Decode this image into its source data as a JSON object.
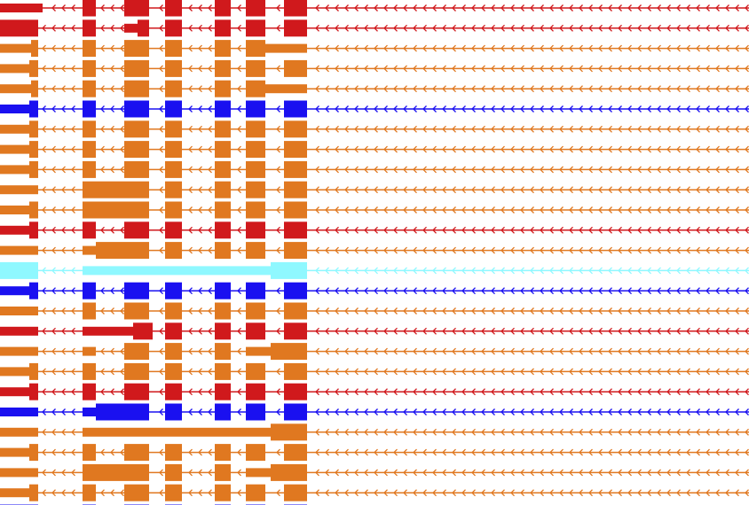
{
  "colors": {
    "red": "#d0191c",
    "orange": "#e07820",
    "blue": "#1a10f0",
    "cyan": "#8ff8ff",
    "background": "#ffffff"
  },
  "strand": "minus",
  "transcripts": [
    {
      "color": "red",
      "exons": [
        [
          0,
          48,
          "u"
        ],
        [
          93,
          108,
          "c"
        ],
        [
          140,
          168,
          "c"
        ],
        [
          186,
          205,
          "c"
        ],
        [
          242,
          260,
          "c"
        ],
        [
          277,
          299,
          "c"
        ],
        [
          320,
          346,
          "c"
        ]
      ]
    },
    {
      "color": "red",
      "exons": [
        [
          0,
          43,
          "c"
        ],
        [
          93,
          108,
          "c"
        ],
        [
          140,
          155,
          "u"
        ],
        [
          155,
          168,
          "c"
        ],
        [
          186,
          205,
          "c"
        ],
        [
          242,
          260,
          "c"
        ],
        [
          277,
          299,
          "c"
        ],
        [
          320,
          346,
          "c"
        ]
      ]
    },
    {
      "color": "orange",
      "exons": [
        [
          0,
          35,
          "u"
        ],
        [
          35,
          43,
          "c"
        ],
        [
          93,
          108,
          "c"
        ],
        [
          140,
          168,
          "c"
        ],
        [
          186,
          205,
          "c"
        ],
        [
          242,
          260,
          "c"
        ],
        [
          277,
          299,
          "c"
        ],
        [
          299,
          346,
          "u"
        ]
      ]
    },
    {
      "color": "orange",
      "exons": [
        [
          0,
          33,
          "u"
        ],
        [
          33,
          43,
          "c"
        ],
        [
          93,
          108,
          "c"
        ],
        [
          140,
          168,
          "c"
        ],
        [
          186,
          205,
          "c"
        ],
        [
          242,
          260,
          "c"
        ],
        [
          277,
          299,
          "c"
        ],
        [
          320,
          346,
          "c"
        ]
      ]
    },
    {
      "color": "orange",
      "exons": [
        [
          0,
          35,
          "u"
        ],
        [
          35,
          43,
          "c"
        ],
        [
          93,
          108,
          "c"
        ],
        [
          140,
          168,
          "c"
        ],
        [
          186,
          205,
          "c"
        ],
        [
          242,
          260,
          "c"
        ],
        [
          277,
          299,
          "c"
        ],
        [
          299,
          346,
          "u"
        ]
      ]
    },
    {
      "color": "blue",
      "exons": [
        [
          0,
          33,
          "u"
        ],
        [
          33,
          43,
          "c"
        ],
        [
          93,
          108,
          "c"
        ],
        [
          140,
          168,
          "c"
        ],
        [
          186,
          205,
          "c"
        ],
        [
          242,
          260,
          "c"
        ],
        [
          277,
          299,
          "c"
        ],
        [
          320,
          346,
          "c"
        ]
      ]
    },
    {
      "color": "orange",
      "exons": [
        [
          0,
          33,
          "u"
        ],
        [
          33,
          43,
          "c"
        ],
        [
          93,
          108,
          "c"
        ],
        [
          140,
          168,
          "c"
        ],
        [
          186,
          205,
          "c"
        ],
        [
          242,
          260,
          "c"
        ],
        [
          277,
          299,
          "c"
        ],
        [
          320,
          346,
          "c"
        ]
      ]
    },
    {
      "color": "orange",
      "exons": [
        [
          0,
          33,
          "u"
        ],
        [
          33,
          43,
          "c"
        ],
        [
          93,
          108,
          "c"
        ],
        [
          140,
          168,
          "c"
        ],
        [
          186,
          205,
          "c"
        ],
        [
          242,
          260,
          "c"
        ],
        [
          277,
          299,
          "c"
        ],
        [
          320,
          346,
          "c"
        ]
      ]
    },
    {
      "color": "orange",
      "exons": [
        [
          0,
          33,
          "u"
        ],
        [
          33,
          43,
          "c"
        ],
        [
          93,
          108,
          "c"
        ],
        [
          140,
          168,
          "c"
        ],
        [
          186,
          205,
          "c"
        ],
        [
          242,
          260,
          "c"
        ],
        [
          277,
          299,
          "c"
        ],
        [
          320,
          346,
          "c"
        ]
      ]
    },
    {
      "color": "orange",
      "exons": [
        [
          0,
          43,
          "u"
        ],
        [
          93,
          168,
          "c"
        ],
        [
          186,
          205,
          "c"
        ],
        [
          242,
          260,
          "c"
        ],
        [
          277,
          299,
          "c"
        ],
        [
          320,
          346,
          "c"
        ]
      ]
    },
    {
      "color": "orange",
      "exons": [
        [
          0,
          33,
          "u"
        ],
        [
          33,
          43,
          "c"
        ],
        [
          93,
          108,
          "c"
        ],
        [
          108,
          168,
          "c"
        ],
        [
          186,
          205,
          "c"
        ],
        [
          242,
          260,
          "c"
        ],
        [
          277,
          299,
          "c"
        ],
        [
          320,
          346,
          "c"
        ]
      ]
    },
    {
      "color": "red",
      "exons": [
        [
          0,
          33,
          "u"
        ],
        [
          33,
          43,
          "c"
        ],
        [
          93,
          108,
          "c"
        ],
        [
          140,
          168,
          "c"
        ],
        [
          186,
          205,
          "c"
        ],
        [
          242,
          260,
          "c"
        ],
        [
          277,
          299,
          "c"
        ],
        [
          320,
          346,
          "c"
        ]
      ]
    },
    {
      "color": "orange",
      "exons": [
        [
          0,
          43,
          "u"
        ],
        [
          93,
          108,
          "u"
        ],
        [
          108,
          168,
          "c"
        ],
        [
          186,
          205,
          "c"
        ],
        [
          242,
          260,
          "c"
        ],
        [
          277,
          299,
          "c"
        ],
        [
          320,
          346,
          "c"
        ]
      ]
    },
    {
      "color": "cyan",
      "exons": [
        [
          0,
          43,
          "c"
        ],
        [
          93,
          305,
          "u"
        ],
        [
          305,
          346,
          "c"
        ]
      ]
    },
    {
      "color": "blue",
      "exons": [
        [
          0,
          33,
          "u"
        ],
        [
          33,
          43,
          "c"
        ],
        [
          93,
          108,
          "c"
        ],
        [
          140,
          168,
          "c"
        ],
        [
          186,
          205,
          "c"
        ],
        [
          242,
          260,
          "c"
        ],
        [
          277,
          299,
          "c"
        ],
        [
          320,
          346,
          "c"
        ]
      ]
    },
    {
      "color": "orange",
      "exons": [
        [
          0,
          43,
          "u"
        ],
        [
          93,
          108,
          "c"
        ],
        [
          140,
          168,
          "c"
        ],
        [
          186,
          205,
          "c"
        ],
        [
          242,
          260,
          "c"
        ],
        [
          277,
          299,
          "c"
        ],
        [
          320,
          346,
          "c"
        ]
      ]
    },
    {
      "color": "red",
      "exons": [
        [
          0,
          43,
          "u"
        ],
        [
          93,
          150,
          "u"
        ],
        [
          150,
          172,
          "c"
        ],
        [
          186,
          205,
          "c"
        ],
        [
          242,
          260,
          "c"
        ],
        [
          277,
          299,
          "c"
        ],
        [
          320,
          346,
          "c"
        ]
      ]
    },
    {
      "color": "orange",
      "exons": [
        [
          0,
          43,
          "u"
        ],
        [
          93,
          108,
          "u"
        ],
        [
          140,
          168,
          "c"
        ],
        [
          186,
          205,
          "c"
        ],
        [
          242,
          260,
          "c"
        ],
        [
          277,
          305,
          "u"
        ],
        [
          305,
          346,
          "c"
        ]
      ]
    },
    {
      "color": "orange",
      "exons": [
        [
          0,
          33,
          "u"
        ],
        [
          33,
          43,
          "c"
        ],
        [
          93,
          108,
          "c"
        ],
        [
          140,
          168,
          "c"
        ],
        [
          186,
          205,
          "c"
        ],
        [
          242,
          260,
          "c"
        ],
        [
          277,
          299,
          "c"
        ],
        [
          320,
          346,
          "c"
        ]
      ]
    },
    {
      "color": "red",
      "exons": [
        [
          0,
          33,
          "u"
        ],
        [
          33,
          43,
          "c"
        ],
        [
          93,
          108,
          "c"
        ],
        [
          140,
          168,
          "c"
        ],
        [
          186,
          205,
          "c"
        ],
        [
          242,
          260,
          "c"
        ],
        [
          277,
          299,
          "c"
        ],
        [
          320,
          346,
          "c"
        ]
      ]
    },
    {
      "color": "blue",
      "exons": [
        [
          0,
          43,
          "u"
        ],
        [
          93,
          108,
          "u"
        ],
        [
          108,
          168,
          "c"
        ],
        [
          186,
          205,
          "c"
        ],
        [
          242,
          260,
          "c"
        ],
        [
          277,
          299,
          "c"
        ],
        [
          320,
          346,
          "c"
        ]
      ]
    },
    {
      "color": "orange",
      "exons": [
        [
          0,
          43,
          "u"
        ],
        [
          93,
          305,
          "u"
        ],
        [
          305,
          346,
          "c"
        ]
      ]
    },
    {
      "color": "orange",
      "exons": [
        [
          0,
          33,
          "u"
        ],
        [
          33,
          43,
          "c"
        ],
        [
          93,
          108,
          "c"
        ],
        [
          140,
          168,
          "c"
        ],
        [
          186,
          205,
          "c"
        ],
        [
          242,
          260,
          "c"
        ],
        [
          277,
          299,
          "c"
        ],
        [
          320,
          346,
          "c"
        ]
      ]
    },
    {
      "color": "orange",
      "exons": [
        [
          0,
          43,
          "u"
        ],
        [
          93,
          108,
          "c"
        ],
        [
          108,
          168,
          "c"
        ],
        [
          186,
          205,
          "c"
        ],
        [
          242,
          260,
          "c"
        ],
        [
          277,
          305,
          "u"
        ],
        [
          305,
          346,
          "c"
        ]
      ]
    },
    {
      "color": "orange",
      "exons": [
        [
          0,
          33,
          "u"
        ],
        [
          33,
          43,
          "c"
        ],
        [
          93,
          108,
          "c"
        ],
        [
          140,
          168,
          "c"
        ],
        [
          186,
          205,
          "c"
        ],
        [
          242,
          260,
          "c"
        ],
        [
          277,
          299,
          "c"
        ],
        [
          320,
          346,
          "c"
        ]
      ]
    },
    {
      "color": "blue",
      "exons": [
        [
          0,
          43,
          "c"
        ],
        [
          93,
          108,
          "c"
        ],
        [
          140,
          168,
          "c"
        ],
        [
          186,
          205,
          "c"
        ],
        [
          242,
          260,
          "c"
        ],
        [
          277,
          299,
          "c"
        ],
        [
          320,
          346,
          "c"
        ]
      ]
    }
  ]
}
